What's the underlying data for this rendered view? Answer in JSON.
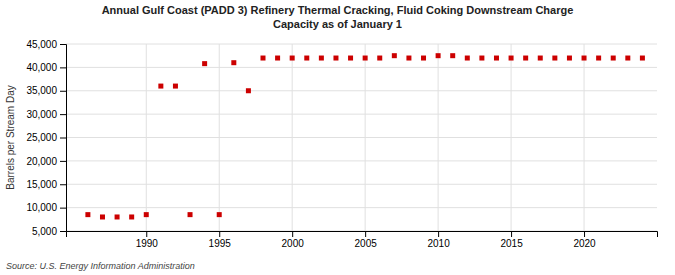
{
  "chart_data": {
    "type": "scatter",
    "title": "Annual Gulf Coast (PADD 3) Refinery Thermal Cracking, Fluid Coking Downstream Charge\nCapacity as of January 1",
    "y_label": "Barrels per Stream Day",
    "source": "Source: U.S. Energy Information Administration",
    "color": "#cc0000",
    "marker": "square",
    "grid": true,
    "x": [
      1986,
      1987,
      1988,
      1989,
      1990,
      1991,
      1992,
      1993,
      1994,
      1995,
      1996,
      1997,
      1998,
      1999,
      2000,
      2001,
      2002,
      2003,
      2004,
      2005,
      2006,
      2007,
      2008,
      2009,
      2010,
      2011,
      2012,
      2013,
      2014,
      2015,
      2016,
      2017,
      2018,
      2019,
      2020,
      2021,
      2022,
      2023,
      2024
    ],
    "values": [
      8500,
      8000,
      8000,
      8000,
      8500,
      36000,
      36000,
      8500,
      40800,
      8500,
      41000,
      35000,
      42000,
      42000,
      42000,
      42000,
      42000,
      42000,
      42000,
      42000,
      42000,
      42500,
      42000,
      42000,
      42500,
      42500,
      42000,
      42000,
      42000,
      42000,
      42000,
      42000,
      42000,
      42000,
      42000,
      42000,
      42000,
      42000,
      42000
    ],
    "xlim": [
      1984.5,
      2025
    ],
    "xticks": [
      1990,
      1995,
      2000,
      2005,
      2010,
      2015,
      2020
    ],
    "ylim": [
      5000,
      45000
    ],
    "yticks": [
      {
        "value": 5000,
        "label": "5,000"
      },
      {
        "value": 10000,
        "label": "10,000"
      },
      {
        "value": 15000,
        "label": "15,000"
      },
      {
        "value": 20000,
        "label": "20,000"
      },
      {
        "value": 25000,
        "label": "25,000"
      },
      {
        "value": 30000,
        "label": "30,000"
      },
      {
        "value": 35000,
        "label": "35,000"
      },
      {
        "value": 40000,
        "label": "40,000"
      },
      {
        "value": 45000,
        "label": "45,000"
      }
    ]
  }
}
